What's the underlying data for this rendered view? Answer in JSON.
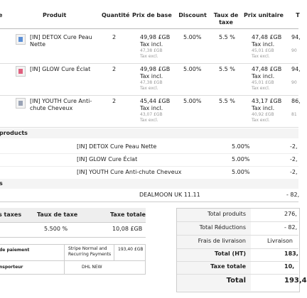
{
  "table": {
    "headers": [
      "e",
      "Produit",
      "Quantité",
      "Prix de base",
      "Discount",
      "Taux de taxe",
      "Prix unitaire",
      "T"
    ],
    "rows": [
      {
        "product": "[IN] DETOX Cure Peau Nette",
        "quantity": 2,
        "base_price": [
          "49,98 £GB",
          "Tax incl.",
          "47,38 £GB",
          "Tax excl."
        ],
        "discount": "5.00%",
        "tax_rate": "5.5 %",
        "unit_price": [
          "47,48 £GB",
          "Tax incl.",
          "45,01 £GB",
          "Tax excl."
        ],
        "total": [
          "94,",
          "90"
        ]
      },
      {
        "product": "[IN] GLOW Cure Éclat",
        "quantity": 2,
        "base_price": [
          "49,98 £GB",
          "Tax incl.",
          "47,38 £GB",
          "Tax excl."
        ],
        "discount": "5.00%",
        "tax_rate": "5.5 %",
        "unit_price": [
          "47,48 £GB",
          "Tax incl.",
          "45,01 £GB",
          "Tax excl."
        ],
        "total": [
          "94,",
          "90"
        ]
      },
      {
        "product": "[IN] YOUTH Cure Anti-chute Cheveux",
        "quantity": 2,
        "base_price": [
          "45,44 £GB",
          "Tax incl.",
          "43,07 £GB",
          "Tax excl."
        ],
        "discount": "5.00%",
        "tax_rate": "5.5 %",
        "unit_price": [
          "43,17 £GB",
          "Tax incl.",
          "40,92 £GB",
          "Tax excl."
        ],
        "total": [
          "86,",
          "81"
        ]
      }
    ]
  },
  "discounts": {
    "title": "products",
    "rows": [
      {
        "product": "[IN] DETOX Cure Peau Nette",
        "rate": "5.00%",
        "amount": "-2,"
      },
      {
        "product": "[IN] GLOW Cure Éclat",
        "rate": "5.00%",
        "amount": "-2,"
      },
      {
        "product": "[IN] YOUTH Cure Anti-chute Cheveux",
        "rate": "5.00%",
        "amount": "-2,"
      }
    ]
  },
  "vouchers": {
    "title": "s",
    "rows": [
      {
        "name": "DEALMOON UK 11.11",
        "amount": "- 82,"
      }
    ]
  },
  "taxes": {
    "headers": [
      "s taxes",
      "Taux de taxe",
      "Taxe totale"
    ],
    "row": [
      "5.500 %",
      "10,08 £GB"
    ]
  },
  "payment": {
    "rows": [
      [
        "de paiement",
        "Stripe Normal and Recurring Payments",
        "193,40 £GB"
      ],
      [
        "nsporteur",
        "DHL NEW"
      ]
    ]
  },
  "totals": [
    {
      "label": "Total produits",
      "value": "276,"
    },
    {
      "label": "Total Réductions",
      "value": "- 82,"
    },
    {
      "label": "Frais de livraison",
      "value": "Livraison"
    },
    {
      "label": "Total (HT)",
      "value": "183,"
    },
    {
      "label": "Taxe totale",
      "value": "10,"
    },
    {
      "label": "Total",
      "value": "193,4"
    }
  ]
}
